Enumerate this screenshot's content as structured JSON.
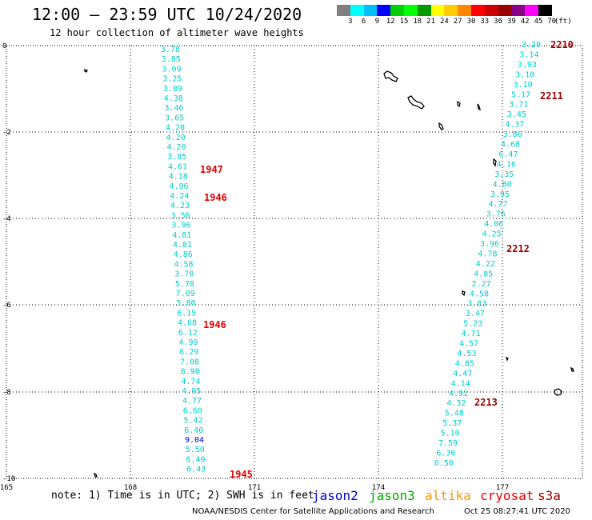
{
  "header": {
    "title": "12:00 — 23:59 UTC 10/24/2020",
    "subtitle": "12 hour collection of altimeter wave heights"
  },
  "legend": {
    "unit": "(ft)",
    "ticks": [
      "3",
      "6",
      "9",
      "12",
      "15",
      "18",
      "21",
      "24",
      "27",
      "30",
      "33",
      "36",
      "39",
      "42",
      "45",
      "70"
    ],
    "colors": [
      "#808080",
      "#00ffff",
      "#00bfff",
      "#0000ff",
      "#00d000",
      "#00ff00",
      "#009900",
      "#ffff00",
      "#ffcc00",
      "#ff8800",
      "#ff0000",
      "#cc0000",
      "#990000",
      "#880088",
      "#ff00ff",
      "#000000"
    ]
  },
  "axes": {
    "x_ticks": [
      "165",
      "168",
      "171",
      "174",
      "177"
    ],
    "y_ticks": [
      "0",
      "-2",
      "-4",
      "-6",
      "-8",
      "-10"
    ]
  },
  "tracks": [
    {
      "name": "left-track",
      "color": "#00cccc",
      "values": [
        "3.78",
        "3.85",
        "3.09",
        "3.25",
        "3.89",
        "4.38",
        "3.46",
        "3.65",
        "4.20",
        "4.20",
        "4.20",
        "3.85",
        "4.61",
        "4.18",
        "4.96",
        "4.24",
        "4.23",
        "3.56",
        "3.96",
        "4.81",
        "4.81",
        "4.86",
        "4.58",
        "3.70",
        "5.78",
        "7.09",
        "5.80",
        "6.15",
        "4.68",
        "6.12",
        "4.99",
        "6.29",
        "7.08",
        "8.98",
        "4.74",
        "4.95",
        "4.77",
        "6.60",
        "5.42",
        "6.40",
        "9.04",
        "5.50",
        "6.49",
        "6.43"
      ],
      "highlight_index": 40,
      "highlight_color": "#0000cc"
    },
    {
      "name": "right-track",
      "color": "#00cccc",
      "values": [
        "3.29",
        "3.14",
        "3.93",
        "3.10",
        "3.10",
        "5.17",
        "3.71",
        "3.45",
        "4.37",
        "3.86",
        "4.68",
        "6.47",
        "4.16",
        "3.35",
        "4.80",
        "3.95",
        "4.77",
        "3.76",
        "4.06",
        "4.25",
        "3.96",
        "4.78",
        "4.22",
        "4.85",
        "2.27",
        "4.58",
        "3.83",
        "3.47",
        "5.23",
        "4.71",
        "4.57",
        "4.53",
        "4.85",
        "4.47",
        "4.14",
        "4.91",
        "4.32",
        "5.48",
        "5.37",
        "5.10",
        "7.59",
        "6.36",
        "6.50"
      ]
    }
  ],
  "time_labels": [
    {
      "text": "1947",
      "color": "#e00000"
    },
    {
      "text": "1946",
      "color": "#e00000"
    },
    {
      "text": "1946",
      "color": "#e00000"
    },
    {
      "text": "1945",
      "color": "#e00000"
    },
    {
      "text": "2210",
      "color": "#990000"
    },
    {
      "text": "2211",
      "color": "#990000"
    },
    {
      "text": "2212",
      "color": "#990000"
    },
    {
      "text": "2213",
      "color": "#990000"
    }
  ],
  "footer": {
    "note": "note: 1) Time is in UTC; 2) SWH is in feet",
    "satellites": [
      {
        "name": "jason2",
        "color": "#0000dd"
      },
      {
        "name": "jason3",
        "color": "#00aa00"
      },
      {
        "name": "altika",
        "color": "#ff9900"
      },
      {
        "name": "cryosat",
        "color": "#ee0000"
      },
      {
        "name": "s3a",
        "color": "#990000"
      }
    ],
    "credit": "NOAA/NESDIS Center for Satellite Applications and Research",
    "timestamp": "Oct 25 08:27:41 UTC 2020"
  }
}
